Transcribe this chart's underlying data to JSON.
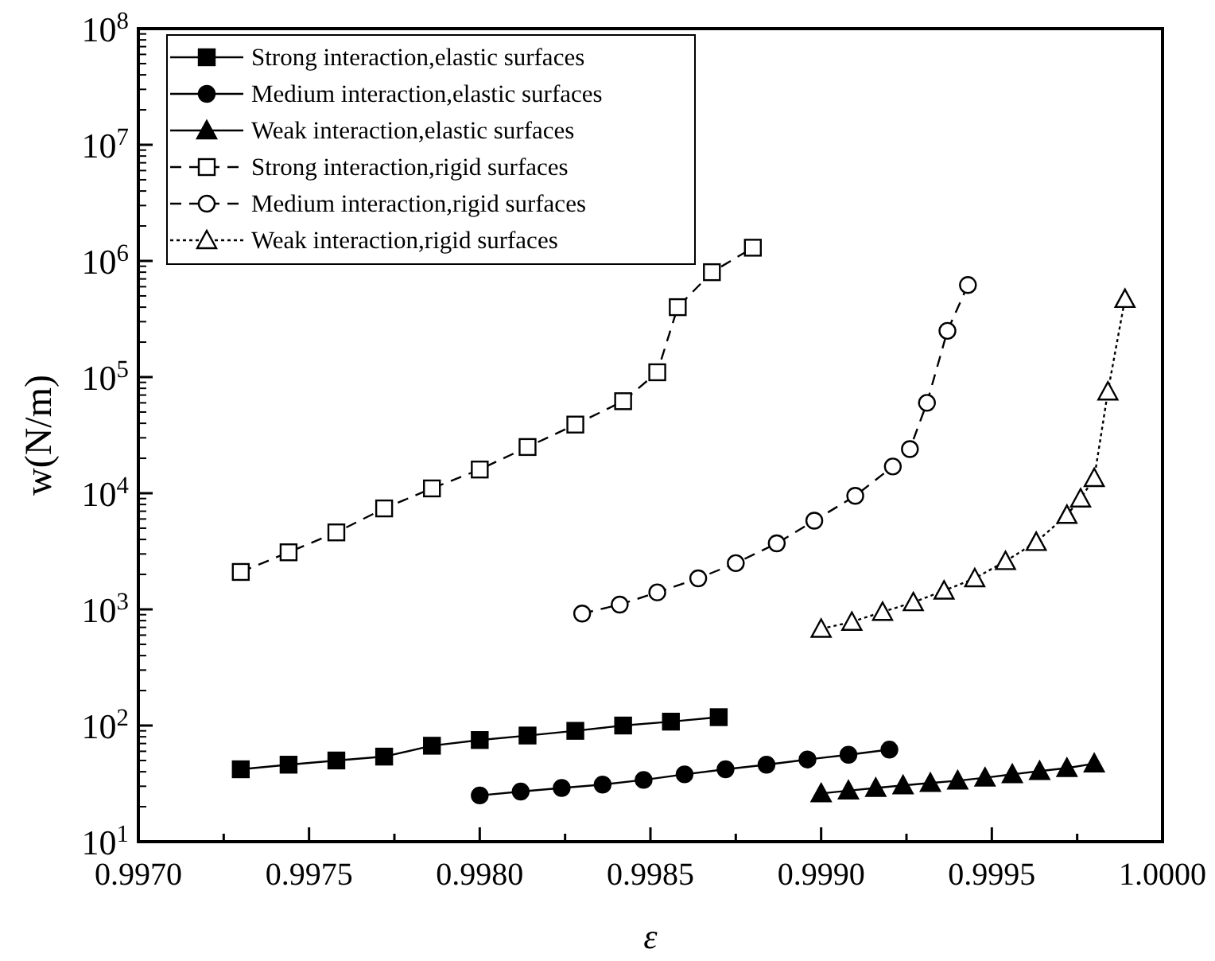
{
  "chart_data": {
    "type": "line",
    "xlabel": "ε",
    "ylabel": "w(N/m)",
    "log": "y",
    "legend": "top left",
    "grid": false,
    "xlim": [
      0.997,
      1.0
    ],
    "ylim": [
      10,
      100000000
    ],
    "xticks": [
      {
        "value": 0.997,
        "label": "0.9970"
      },
      {
        "value": 0.99725,
        "label": null
      },
      {
        "value": 0.9975,
        "label": "0.9975"
      },
      {
        "value": 0.99775,
        "label": null
      },
      {
        "value": 0.998,
        "label": "0.9980"
      },
      {
        "value": 0.99825,
        "label": null
      },
      {
        "value": 0.9985,
        "label": "0.9985"
      },
      {
        "value": 0.99875,
        "label": null
      },
      {
        "value": 0.999,
        "label": "0.9990"
      },
      {
        "value": 0.99925,
        "label": null
      },
      {
        "value": 0.9995,
        "label": "0.9995"
      },
      {
        "value": 0.99975,
        "label": null
      },
      {
        "value": 1.0,
        "label": "1.0000"
      }
    ],
    "yticks": [
      {
        "value": 10,
        "label": "10$^{1}$"
      },
      {
        "value": 100,
        "label": "10$^{2}$"
      },
      {
        "value": 1000,
        "label": "10$^{3}$"
      },
      {
        "value": 10000,
        "label": "10$^{4}$"
      },
      {
        "value": 100000,
        "label": "10$^{5}$"
      },
      {
        "value": 1000000,
        "label": "10$^{6}$"
      },
      {
        "value": 10000000,
        "label": "10$^{7}$"
      },
      {
        "value": 100000000,
        "label": "10$^{8}$"
      }
    ],
    "series": [
      {
        "name": "Strong interaction,elastic surfaces",
        "color": "#000000",
        "marker": "square",
        "line_style": "solid",
        "x": [
          0.9973,
          0.99744,
          0.99758,
          0.99772,
          0.99786,
          0.998,
          0.99814,
          0.99828,
          0.99842,
          0.99856,
          0.9987
        ],
        "values": [
          42,
          46,
          50,
          54,
          67,
          75,
          82,
          90,
          100,
          108,
          118
        ]
      },
      {
        "name": "Medium interaction,elastic surfaces",
        "color": "#000000",
        "marker": "circle",
        "line_style": "solid",
        "x": [
          0.998,
          0.99812,
          0.99824,
          0.99836,
          0.99848,
          0.9986,
          0.99872,
          0.99884,
          0.99896,
          0.99908,
          0.9992
        ],
        "values": [
          25,
          27,
          29,
          31,
          34,
          38,
          42,
          46,
          51,
          56,
          62
        ]
      },
      {
        "name": "Weak interaction,elastic surfaces",
        "color": "#000000",
        "marker": "triangle",
        "line_style": "solid",
        "x": [
          0.999,
          0.99908,
          0.99916,
          0.99924,
          0.99932,
          0.9994,
          0.99948,
          0.99956,
          0.99964,
          0.99972,
          0.9998
        ],
        "values": [
          26,
          27.5,
          29,
          30.5,
          32,
          33.5,
          35.5,
          38,
          40.5,
          43,
          47
        ]
      },
      {
        "name": "Strong interaction,rigid surfaces",
        "color": "#000000",
        "marker": "square",
        "line_style": "dashed",
        "x": [
          0.9973,
          0.99744,
          0.99758,
          0.99772,
          0.99786,
          0.998,
          0.99814,
          0.99828,
          0.99842,
          0.99852,
          0.99858,
          0.99868,
          0.9988
        ],
        "values": [
          2100,
          3100,
          4600,
          7400,
          11000,
          16000,
          25000,
          39000,
          62000,
          110000,
          400000,
          800000,
          1300000
        ]
      },
      {
        "name": "Medium interaction,rigid surfaces",
        "color": "#000000",
        "marker": "circle",
        "line_style": "dashed",
        "x": [
          0.9983,
          0.99841,
          0.99852,
          0.99864,
          0.99875,
          0.99887,
          0.99898,
          0.9991,
          0.99921,
          0.99926,
          0.99931,
          0.99937,
          0.99943
        ],
        "values": [
          920,
          1100,
          1400,
          1850,
          2500,
          3700,
          5800,
          9500,
          17000,
          24000,
          60000,
          250000,
          620000
        ]
      },
      {
        "name": "Weak interaction,rigid surfaces",
        "color": "#000000",
        "marker": "triangle",
        "line_style": "dotted",
        "x": [
          0.999,
          0.99909,
          0.99918,
          0.99927,
          0.99936,
          0.99945,
          0.99954,
          0.99963,
          0.99972,
          0.99976,
          0.9998,
          0.99984,
          0.99989
        ],
        "values": [
          680,
          780,
          950,
          1150,
          1450,
          1850,
          2600,
          3800,
          6500,
          9000,
          13500,
          75000,
          470000
        ]
      }
    ]
  }
}
